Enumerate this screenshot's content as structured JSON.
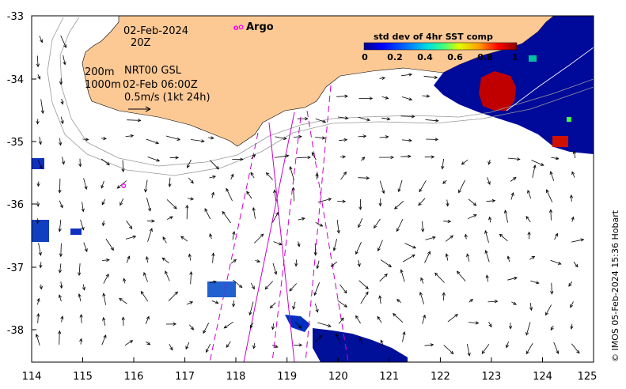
{
  "map": {
    "axes": {
      "x_ticks": [
        "114",
        "115",
        "116",
        "117",
        "118",
        "119",
        "120",
        "121",
        "122",
        "123",
        "124",
        "125"
      ],
      "y_ticks": [
        "-33",
        "-34",
        "-35",
        "-36",
        "-37",
        "-38"
      ],
      "lon_range": [
        114,
        125
      ],
      "lat_range": [
        -38.5,
        -33
      ]
    },
    "annotations": {
      "date": "02-Feb-2024",
      "time": "20Z",
      "line1_left": "200m",
      "line1_right": "NRT00 GSL",
      "line2_left": "1000m",
      "line2_right": "02-Feb 06:00Z",
      "scale_label": "0.5m/s (1kt 24h)"
    },
    "legend": {
      "argo_label": "Argo",
      "argo_marker": "o"
    },
    "colorbar": {
      "title": "std dev of 4hr SST comp",
      "ticks": [
        "0",
        "0.2",
        "0.4",
        "0.6",
        "0.8",
        "1"
      ],
      "colors": [
        "#00008b",
        "#0000ff",
        "#0080ff",
        "#00ffff",
        "#80ff80",
        "#ffff00",
        "#ff8000",
        "#ff0000",
        "#8b0000"
      ]
    },
    "credit": "© IMOS 05-Feb-2024 15:36 Hobart",
    "colors": {
      "land": "#fcc995",
      "argo": "#ff00ff",
      "track": "#cc00cc"
    },
    "argo_floats": [
      {
        "lon": 118.1,
        "lat": -33.18
      },
      {
        "lon": 115.8,
        "lat": -35.7
      }
    ]
  }
}
